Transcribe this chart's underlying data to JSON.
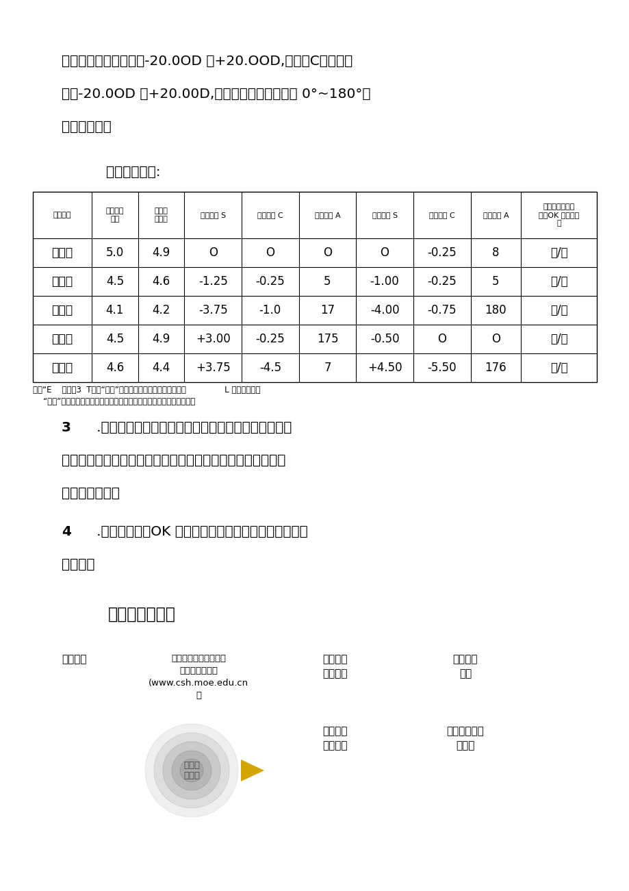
{
  "bg_color": "#ffffff",
  "text_color": "#000000",
  "para1_line1": "球镜（三）数据范围为-20.0OD 至+20.OOD,柱镜（C）数据范",
  "para1_line2": "围为-20.0OD 至+20.00D,轴位（八）数据范围为 0°~180°，",
  "para1_line3": "轴位为整数。",
  "example_label": "数据录入示例:",
  "table_rows": [
    [
      "张某某",
      "5.0",
      "4.9",
      "O",
      "O",
      "O",
      "O",
      "-0.25",
      "8",
      "是/否"
    ],
    [
      "李某某",
      "4.5",
      "4.6",
      "-1.25",
      "-0.25",
      "5",
      "-1.00",
      "-0.25",
      "5",
      "是/否"
    ],
    [
      "黄某某",
      "4.1",
      "4.2",
      "-3.75",
      "-1.0",
      "17",
      "-4.00",
      "-0.75",
      "180",
      "是/否"
    ],
    [
      "赵某某",
      "4.5",
      "4.9",
      "+3.00",
      "-0.25",
      "175",
      "-0.50",
      "O",
      "O",
      "是/否"
    ],
    [
      "王某某",
      "4.6",
      "4.4",
      "+3.75",
      "-4.5",
      "7",
      "+4.50",
      "-5.50",
      "176",
      "是/否"
    ]
  ],
  "note_line1": "注：“E    目脑驓3  T中，“球镜”为近视或远视度数，负値为近多               L 正値为远视；",
  "note_line2": "    “柱镜”为散光度数；轴位为散光的方向，有散光度数才会有散光轴位。",
  "para3_num": "3",
  "para3_text": "   .数据采集和录入顺序为：右眼裸眼视力、左眼裸眼视",
  "para3_line2": "力、右眼屈光度（球镜、柱镜、轴位）、左眼屈光度（球镜、",
  "para3_line3": "柱镜、轴位）。",
  "para4_num": "4",
  "para4_text": "   .角膜塑形镜（OK 镜）佩戴者，在录入数据同时，应予",
  "para4_line2": "以标注。",
  "section5_title": "（五）流程指引",
  "flow_label1": "学校用户",
  "flow_label2": "登录中国学生体质健康\n网数据报送平台\n(www.csh.moe.edu.cn\n）",
  "flow_label3": "点击视力\n数据上报",
  "flow_label4": "下载视力\n数据",
  "flow_label5": "教育行政\n部门审核",
  "flow_label6": "核对数据导入\n并上报",
  "flow_center_text": "数据报\n送完成",
  "col_headers": [
    "个人信息",
    "右眼裸眼\n视力",
    "左眼裸\n眼视力",
    "右眼球镜 S",
    "右眼柱镜 C",
    "右眼轴位 A",
    "左眼球镜 S",
    "左眼柱镜 C",
    "左眼轴位 A",
    "是否为角膜塑形\n镜（OK 镜）佩戴\n者"
  ]
}
